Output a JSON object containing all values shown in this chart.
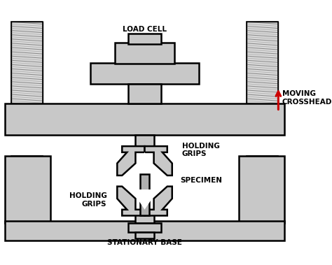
{
  "background_color": "#ffffff",
  "fill_color": "#c8c8c8",
  "edge_color": "#000000",
  "text_color": "#000000",
  "arrow_color": "#cc0000",
  "labels": {
    "load_cell": "LOAD CELL",
    "holding_grips_top": "HOLDING\nGRIPS",
    "specimen": "SPECIMEN",
    "holding_grips_bottom": "HOLDING\nGRIPS",
    "moving_crosshead": "MOVING\nCROSSHEAD",
    "stationary_base": "STATIONARY BASE"
  },
  "figsize": [
    4.74,
    3.79
  ],
  "dpi": 100
}
